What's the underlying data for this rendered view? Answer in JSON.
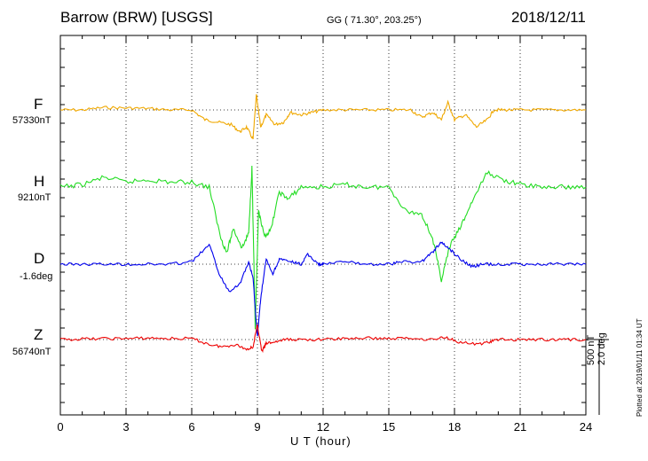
{
  "chart_data": {
    "type": "line",
    "title_left": "Barrow (BRW)  [USGS]",
    "title_mid": "GG ( 71.30°, 203.25°)",
    "title_right": "2018/12/11",
    "xlabel": "U T (hour)",
    "xlim": [
      0,
      24
    ],
    "x_ticks": [
      "0",
      "3",
      "6",
      "9",
      "12",
      "15",
      "18",
      "21",
      "24"
    ],
    "grid": true,
    "scale_label": "500 nT",
    "scale_label2": "2.0 deg",
    "plotted_note": "Plotted at 2019/01/11 01:34 UT",
    "series": [
      {
        "name": "F",
        "base_label": "57330nT",
        "color": "#f0a800",
        "points": [
          [
            0,
            0
          ],
          [
            1,
            0
          ],
          [
            2,
            -5
          ],
          [
            3,
            -4
          ],
          [
            4,
            -3
          ],
          [
            5,
            0
          ],
          [
            6,
            0
          ],
          [
            6.6,
            20
          ],
          [
            7.2,
            25
          ],
          [
            7.8,
            30
          ],
          [
            8.2,
            45
          ],
          [
            8.5,
            35
          ],
          [
            8.8,
            60
          ],
          [
            8.95,
            -30
          ],
          [
            9.15,
            35
          ],
          [
            9.4,
            10
          ],
          [
            9.8,
            30
          ],
          [
            10.2,
            25
          ],
          [
            10.5,
            5
          ],
          [
            11,
            10
          ],
          [
            11.5,
            5
          ],
          [
            12,
            0
          ],
          [
            13,
            0
          ],
          [
            14,
            0
          ],
          [
            15,
            0
          ],
          [
            16,
            0
          ],
          [
            16.5,
            15
          ],
          [
            17,
            5
          ],
          [
            17.4,
            20
          ],
          [
            17.7,
            -15
          ],
          [
            18,
            20
          ],
          [
            18.5,
            10
          ],
          [
            19,
            35
          ],
          [
            19.5,
            20
          ],
          [
            19.8,
            0
          ],
          [
            20.3,
            0
          ],
          [
            21,
            0
          ],
          [
            22,
            0
          ],
          [
            23,
            0
          ],
          [
            24,
            0
          ]
        ]
      },
      {
        "name": "H",
        "base_label": "9210nT",
        "color": "#22dd22",
        "points": [
          [
            0,
            0
          ],
          [
            1,
            -5
          ],
          [
            2,
            -20
          ],
          [
            3,
            -10
          ],
          [
            4,
            -15
          ],
          [
            5,
            -10
          ],
          [
            6,
            -10
          ],
          [
            6.8,
            0
          ],
          [
            7.3,
            100
          ],
          [
            7.6,
            135
          ],
          [
            7.9,
            85
          ],
          [
            8.3,
            125
          ],
          [
            8.6,
            95
          ],
          [
            8.75,
            -40
          ],
          [
            8.9,
            290
          ],
          [
            9.05,
            50
          ],
          [
            9.3,
            100
          ],
          [
            9.6,
            90
          ],
          [
            10,
            10
          ],
          [
            10.4,
            25
          ],
          [
            11,
            0
          ],
          [
            12,
            0
          ],
          [
            13,
            -5
          ],
          [
            14,
            0
          ],
          [
            15,
            0
          ],
          [
            15.8,
            50
          ],
          [
            16.5,
            55
          ],
          [
            17,
            105
          ],
          [
            17.4,
            190
          ],
          [
            17.8,
            120
          ],
          [
            18.3,
            80
          ],
          [
            18.8,
            30
          ],
          [
            19.5,
            -30
          ],
          [
            20.2,
            -15
          ],
          [
            21,
            -5
          ],
          [
            22,
            0
          ],
          [
            23,
            0
          ],
          [
            24,
            0
          ]
        ]
      },
      {
        "name": "D",
        "base_label": "-1.6deg",
        "color": "#0000ee",
        "points": [
          [
            0,
            0
          ],
          [
            1,
            0
          ],
          [
            2,
            0
          ],
          [
            3,
            0
          ],
          [
            4,
            0
          ],
          [
            5,
            0
          ],
          [
            6,
            -5
          ],
          [
            6.8,
            -40
          ],
          [
            7.3,
            25
          ],
          [
            7.7,
            55
          ],
          [
            8.2,
            40
          ],
          [
            8.6,
            -5
          ],
          [
            8.8,
            30
          ],
          [
            9.0,
            150
          ],
          [
            9.15,
            70
          ],
          [
            9.4,
            -10
          ],
          [
            9.7,
            20
          ],
          [
            10,
            -10
          ],
          [
            10.5,
            -5
          ],
          [
            11,
            0
          ],
          [
            11.3,
            -20
          ],
          [
            11.8,
            0
          ],
          [
            12,
            0
          ],
          [
            13,
            -5
          ],
          [
            14,
            0
          ],
          [
            15,
            0
          ],
          [
            15.6,
            -5
          ],
          [
            16.5,
            -5
          ],
          [
            17,
            -25
          ],
          [
            17.4,
            -45
          ],
          [
            17.8,
            -30
          ],
          [
            18.3,
            -10
          ],
          [
            18.8,
            5
          ],
          [
            19.3,
            0
          ],
          [
            20,
            0
          ],
          [
            21,
            0
          ],
          [
            22,
            0
          ],
          [
            23,
            0
          ],
          [
            24,
            0
          ]
        ]
      },
      {
        "name": "Z",
        "base_label": "56740nT",
        "color": "#ee0000",
        "points": [
          [
            0,
            0
          ],
          [
            1,
            -1
          ],
          [
            2,
            -2
          ],
          [
            3,
            -2
          ],
          [
            4,
            -3
          ],
          [
            5,
            -2
          ],
          [
            6,
            -2
          ],
          [
            6.8,
            10
          ],
          [
            7.4,
            15
          ],
          [
            8,
            10
          ],
          [
            8.5,
            20
          ],
          [
            8.8,
            15
          ],
          [
            9.0,
            -30
          ],
          [
            9.2,
            25
          ],
          [
            9.4,
            8
          ],
          [
            9.8,
            5
          ],
          [
            10.3,
            0
          ],
          [
            11,
            0
          ],
          [
            12,
            0
          ],
          [
            13,
            -2
          ],
          [
            14,
            -3
          ],
          [
            15,
            -2
          ],
          [
            16,
            -3
          ],
          [
            17,
            0
          ],
          [
            17.6,
            -5
          ],
          [
            18.2,
            5
          ],
          [
            19,
            10
          ],
          [
            19.6,
            5
          ],
          [
            20,
            0
          ],
          [
            21,
            0
          ],
          [
            22,
            0
          ],
          [
            23,
            0
          ],
          [
            24,
            0
          ]
        ]
      }
    ]
  }
}
